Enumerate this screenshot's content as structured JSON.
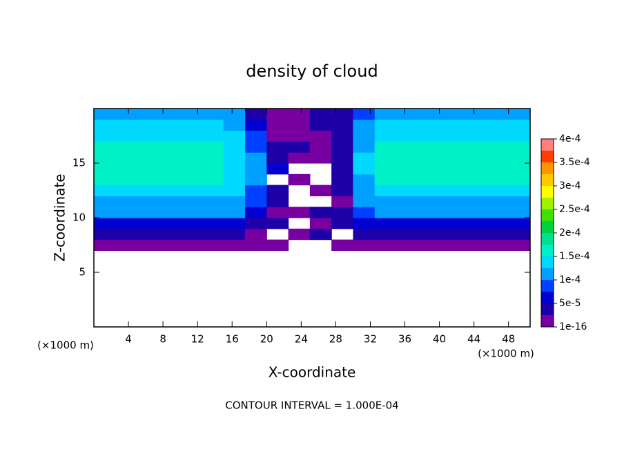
{
  "chart_data": {
    "type": "contour",
    "title": "density of cloud",
    "xlabel": "X-coordinate",
    "ylabel": "Z-coordinate",
    "x_unit": "(×1000 m)",
    "annotation": "CONTOUR INTERVAL = 1.000E-04",
    "xlim": [
      0,
      50.5
    ],
    "ylim": [
      0,
      20
    ],
    "xticks": [
      4,
      8,
      12,
      16,
      20,
      24,
      28,
      32,
      36,
      40,
      44,
      48
    ],
    "yticks": [
      5,
      10,
      15
    ],
    "x": [
      1.25,
      3.75,
      6.25,
      8.75,
      11.25,
      13.75,
      16.25,
      18.75,
      21.25,
      23.75,
      26.25,
      28.75,
      31.25,
      33.75,
      36.25,
      38.75,
      41.25,
      43.75,
      46.25,
      48.75,
      51.25
    ],
    "y": [
      7.5,
      8.5,
      9.5,
      10.5,
      11.5,
      12.5,
      13.5,
      14.5,
      15.5,
      16.5,
      17.5,
      18.5,
      19.5
    ],
    "z": [
      [
        1.5e-05,
        1.5e-05,
        1.5e-05,
        1.5e-05,
        1.5e-05,
        1.5e-05,
        1.5e-05,
        1e-05,
        1e-05,
        null,
        null,
        1e-05,
        1e-05,
        1.5e-05,
        1.5e-05,
        1.5e-05,
        1.5e-05,
        1.5e-05,
        1.5e-05,
        1.5e-05,
        1.5e-05
      ],
      [
        4e-05,
        4e-05,
        4e-05,
        4e-05,
        4e-05,
        4e-05,
        3e-05,
        2e-05,
        null,
        2e-05,
        3e-05,
        null,
        3e-05,
        4e-05,
        4e-05,
        4e-05,
        4e-05,
        4e-05,
        4e-05,
        4e-05,
        4e-05
      ],
      [
        7e-05,
        7e-05,
        7e-05,
        7e-05,
        7e-05,
        7e-05,
        6e-05,
        4e-05,
        3e-05,
        null,
        2e-05,
        3e-05,
        6e-05,
        7e-05,
        7e-05,
        7e-05,
        7e-05,
        7e-05,
        7e-05,
        7e-05,
        7e-05
      ],
      [
        0.000105,
        0.000105,
        0.000105,
        0.000105,
        0.000105,
        0.000105,
        0.0001,
        6e-05,
        2e-05,
        1e-05,
        3e-05,
        4e-05,
        9e-05,
        0.000105,
        0.000105,
        0.000105,
        0.000105,
        0.000105,
        0.000105,
        0.000105,
        0.000105
      ],
      [
        0.00012,
        0.00012,
        0.00012,
        0.00012,
        0.00012,
        0.00012,
        0.000115,
        8e-05,
        4e-05,
        null,
        null,
        2e-05,
        0.0001,
        0.00012,
        0.00012,
        0.00012,
        0.00012,
        0.00012,
        0.00012,
        0.00012,
        0.00012
      ],
      [
        0.000135,
        0.000135,
        0.000135,
        0.000135,
        0.000135,
        0.000135,
        0.00013,
        9e-05,
        3e-05,
        null,
        1e-05,
        3e-05,
        0.00011,
        0.000135,
        0.000135,
        0.000135,
        0.000135,
        0.000135,
        0.000135,
        0.000135,
        0.000135
      ],
      [
        0.00015,
        0.00015,
        0.00015,
        0.00015,
        0.00015,
        0.00015,
        0.00014,
        0.0001,
        null,
        1e-05,
        null,
        3e-05,
        0.00012,
        0.00015,
        0.00015,
        0.00015,
        0.00015,
        0.00015,
        0.00015,
        0.00015,
        0.00015
      ],
      [
        0.000155,
        0.000155,
        0.000155,
        0.000155,
        0.000155,
        0.000155,
        0.000145,
        0.000105,
        5e-05,
        null,
        null,
        4e-05,
        0.000125,
        0.000155,
        0.000155,
        0.000155,
        0.000155,
        0.000155,
        0.000155,
        0.000155,
        0.000155
      ],
      [
        0.000155,
        0.000155,
        0.000155,
        0.000155,
        0.000155,
        0.000155,
        0.000145,
        0.0001,
        4e-05,
        2e-05,
        1e-05,
        4e-05,
        0.000125,
        0.000155,
        0.000155,
        0.000155,
        0.000155,
        0.000155,
        0.000155,
        0.000155,
        0.000155
      ],
      [
        0.00015,
        0.00015,
        0.00015,
        0.00015,
        0.00015,
        0.00015,
        0.00014,
        9e-05,
        3e-05,
        3e-05,
        2e-05,
        3e-05,
        0.00012,
        0.00015,
        0.00015,
        0.00015,
        0.00015,
        0.00015,
        0.00015,
        0.00015,
        0.00015
      ],
      [
        0.00014,
        0.00014,
        0.00014,
        0.00014,
        0.00014,
        0.00014,
        0.00013,
        8e-05,
        2e-05,
        1e-05,
        2e-05,
        3e-05,
        0.00011,
        0.00014,
        0.00014,
        0.00014,
        0.00014,
        0.00014,
        0.00014,
        0.00014,
        0.00014
      ],
      [
        0.00013,
        0.00013,
        0.00013,
        0.00013,
        0.00013,
        0.00013,
        0.00012,
        6e-05,
        1e-05,
        1e-05,
        3e-05,
        4e-05,
        0.0001,
        0.00013,
        0.00013,
        0.00013,
        0.00013,
        0.00013,
        0.00013,
        0.00013,
        0.00013
      ],
      [
        0.00011,
        0.00011,
        0.00011,
        0.00011,
        0.00011,
        0.00011,
        0.0001,
        4e-05,
        2e-05,
        1e-05,
        3e-05,
        3e-05,
        8e-05,
        0.00011,
        0.00011,
        0.00011,
        0.00011,
        0.00011,
        0.00011,
        0.00011,
        0.00011
      ]
    ],
    "levels": [
      1e-16,
      2.5e-05,
      5e-05,
      7.5e-05,
      0.0001,
      0.000125,
      0.00015,
      0.000175,
      0.0002,
      0.000225,
      0.00025,
      0.000275,
      0.0003,
      0.000325,
      0.00035,
      0.000375,
      0.0004
    ],
    "colors": [
      "#7800a0",
      "#1e00a8",
      "#0000d0",
      "#0040ff",
      "#00a0ff",
      "#00d8ff",
      "#00f0c8",
      "#00e090",
      "#00d040",
      "#40e000",
      "#a0f000",
      "#ffff00",
      "#ffc800",
      "#ff9600",
      "#ff3c00",
      "#ff8080"
    ],
    "cticks": [
      {
        "value": 1e-16,
        "label": "1e-16"
      },
      {
        "value": 5e-05,
        "label": "5e-5"
      },
      {
        "value": 0.0001,
        "label": "1e-4"
      },
      {
        "value": 0.00015,
        "label": "1.5e-4"
      },
      {
        "value": 0.0002,
        "label": "2e-4"
      },
      {
        "value": 0.00025,
        "label": "2.5e-4"
      },
      {
        "value": 0.0003,
        "label": "3e-4"
      },
      {
        "value": 0.00035,
        "label": "3.5e-4"
      },
      {
        "value": 0.0004,
        "label": "4e-4"
      }
    ]
  }
}
